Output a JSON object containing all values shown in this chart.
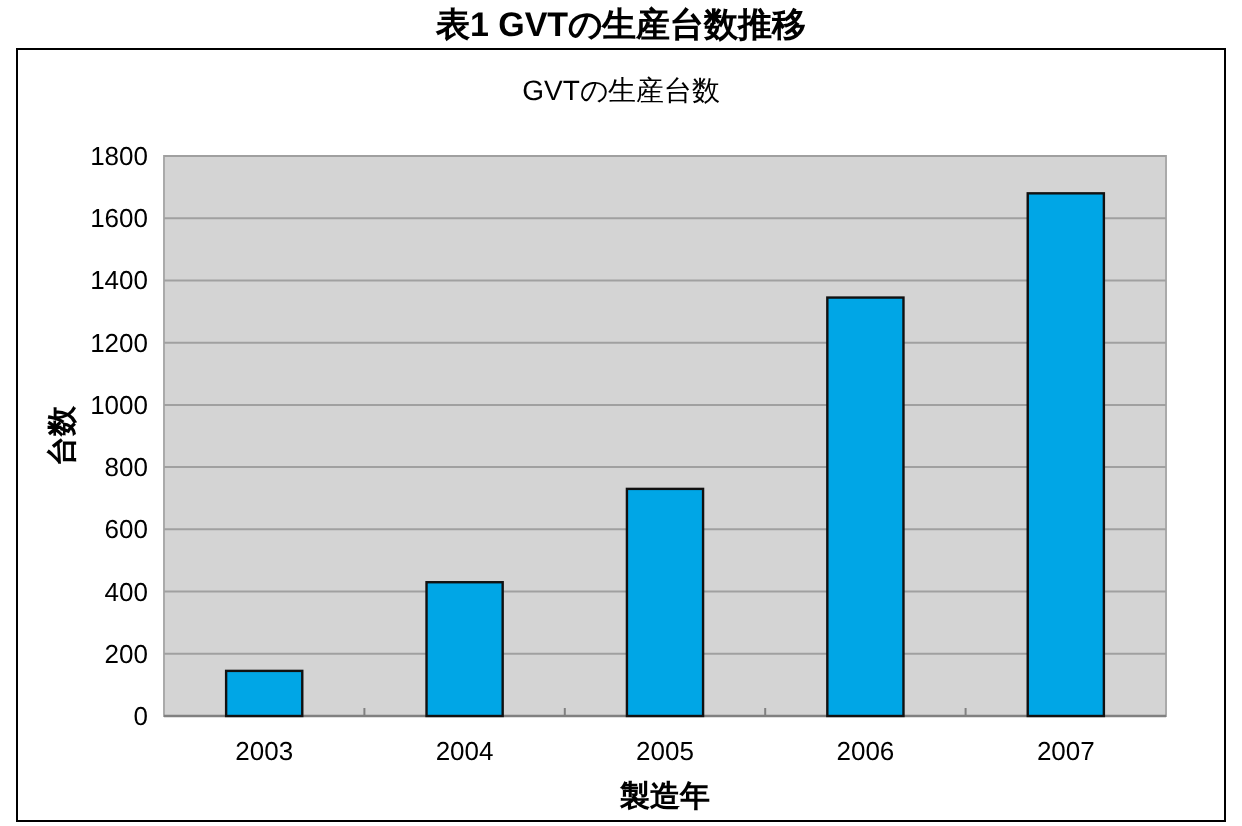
{
  "chart_data": {
    "type": "bar",
    "title": "表1 GVTの生産台数推移",
    "subtitle": "GVTの生産台数",
    "xlabel": "製造年",
    "ylabel": "台数",
    "categories": [
      "2003",
      "2004",
      "2005",
      "2006",
      "2007"
    ],
    "series": [
      {
        "color": "#00a6e6",
        "values": [
          145,
          430,
          730,
          1345,
          1680
        ]
      }
    ],
    "ylim": [
      0,
      1800
    ],
    "yticks": [
      0,
      200,
      400,
      600,
      800,
      1000,
      1200,
      1400,
      1600,
      1800
    ],
    "grid": "y"
  }
}
